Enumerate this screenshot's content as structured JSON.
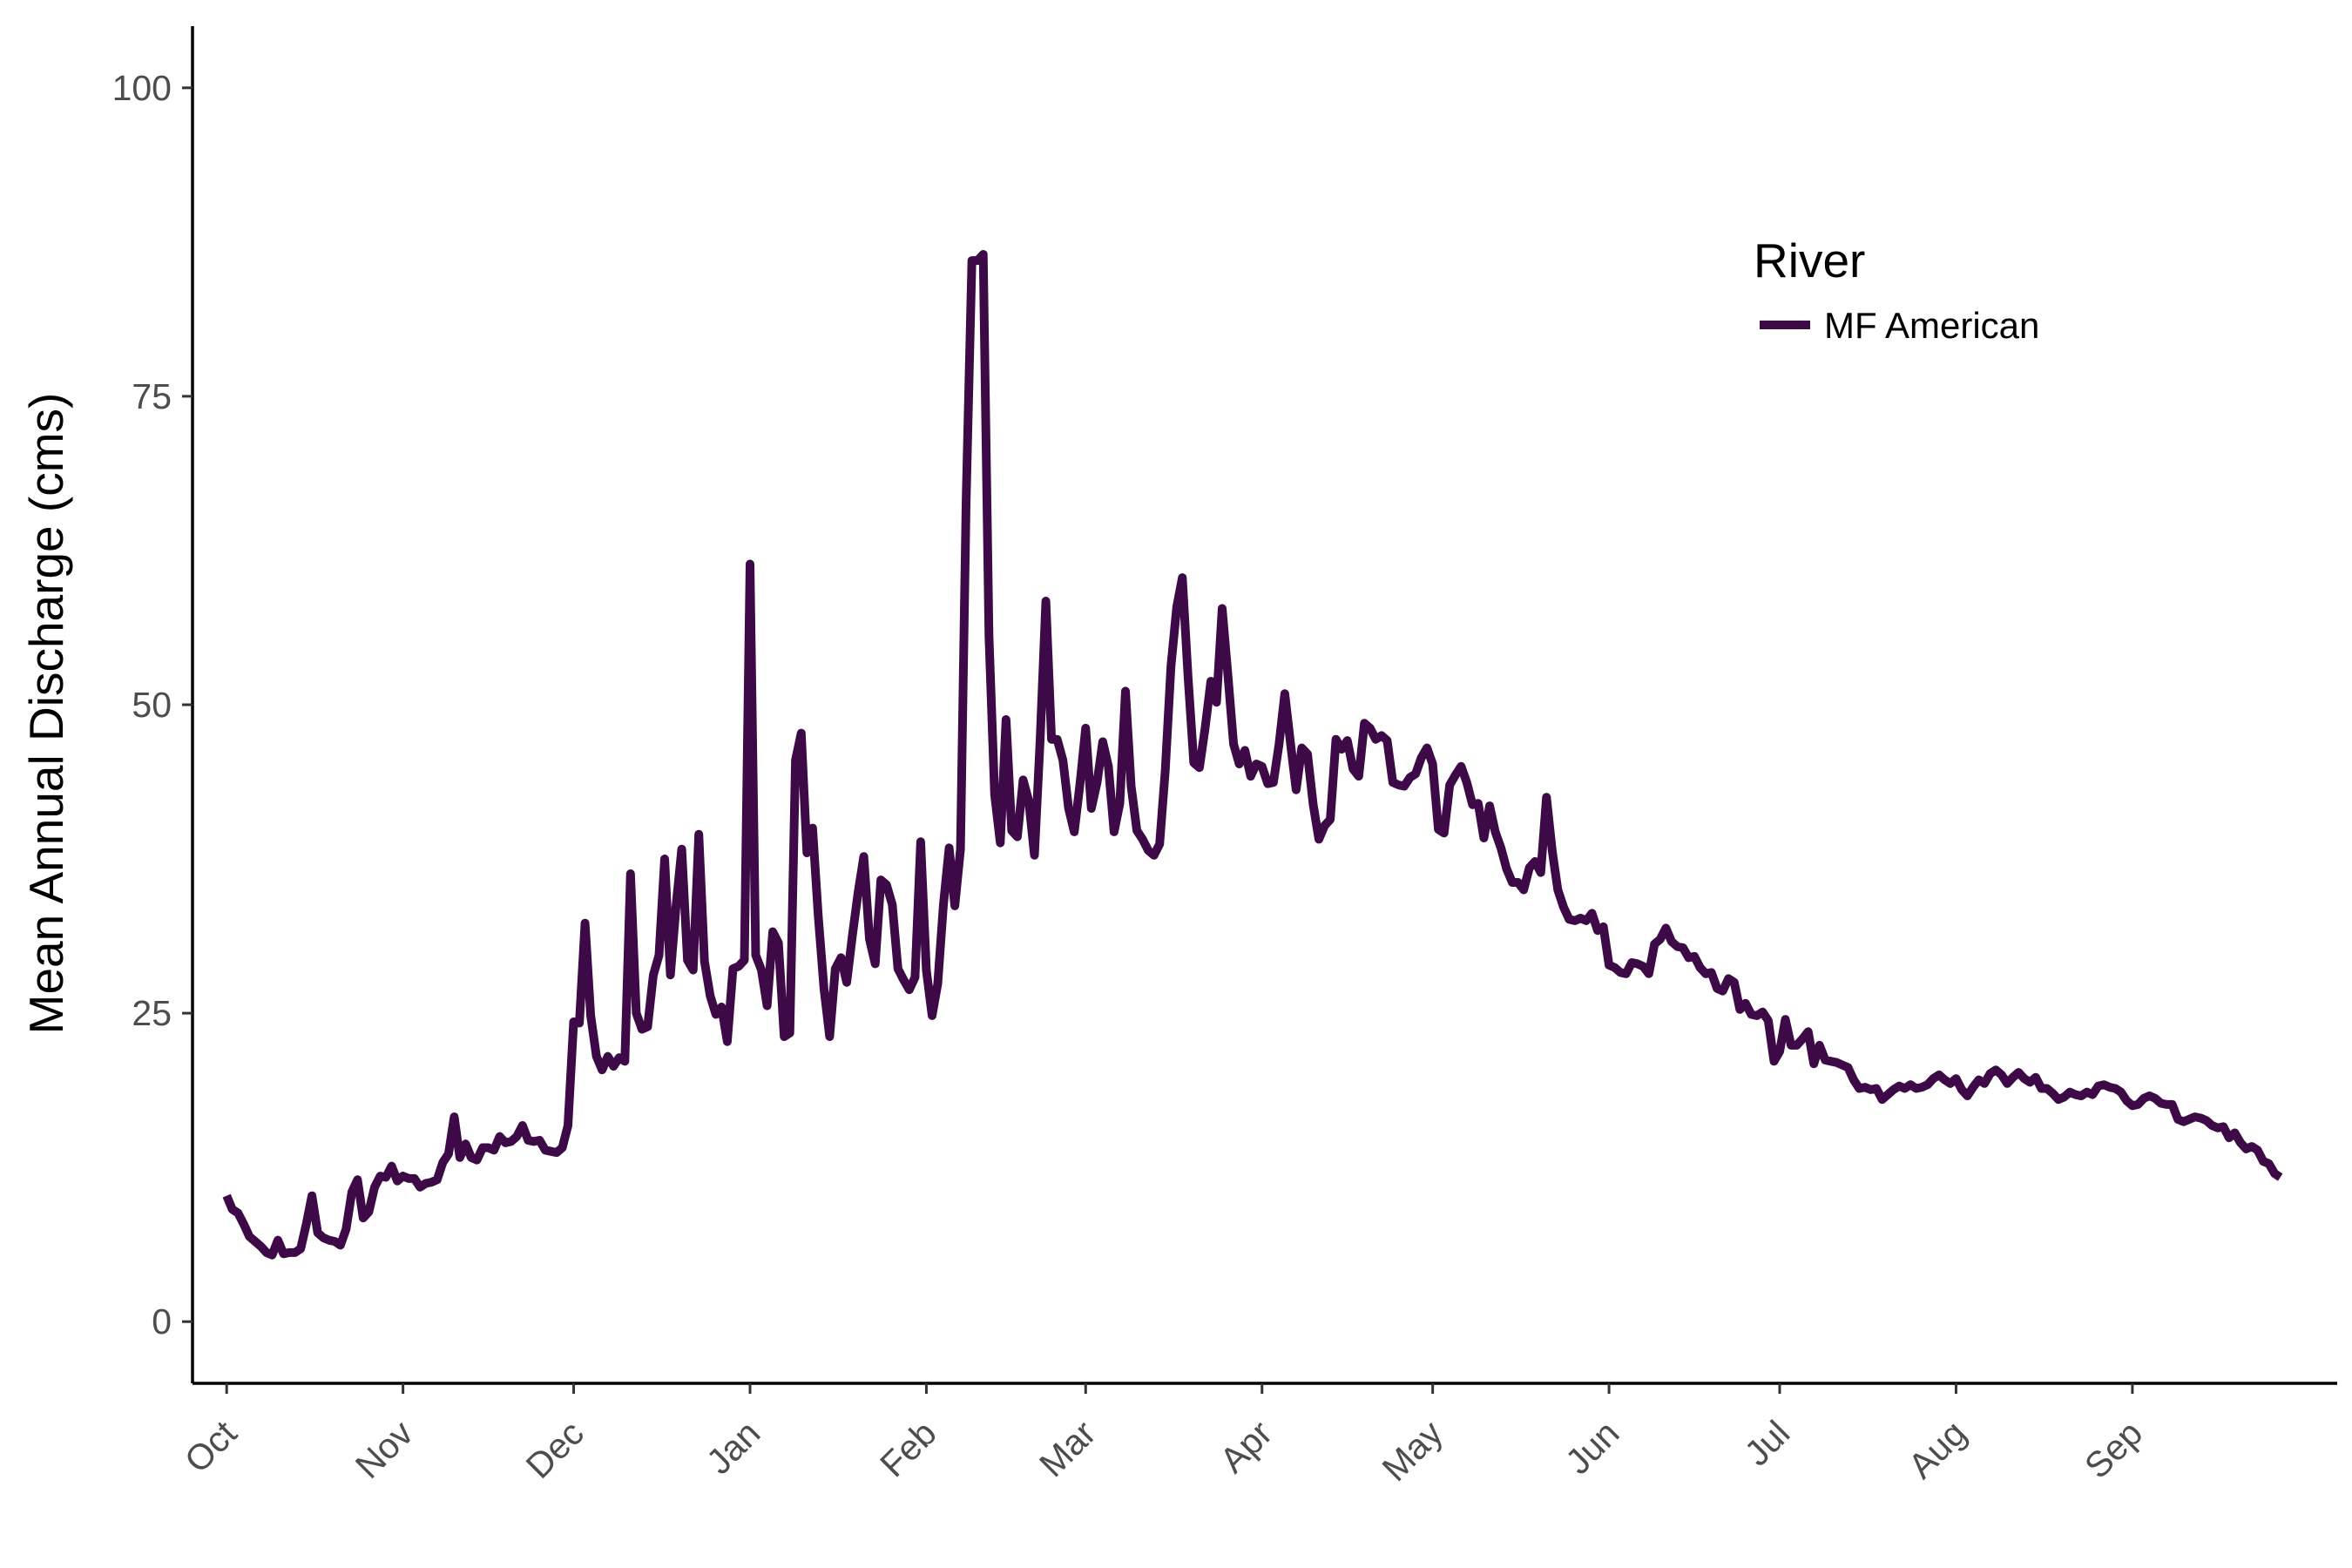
{
  "chart_data": {
    "type": "line",
    "xlabel": "",
    "ylabel": "Mean Annual Discharge (cms)",
    "ylim": [
      -5,
      105
    ],
    "x_range_days": [
      -6,
      371
    ],
    "yticks": [
      0,
      25,
      50,
      75,
      100
    ],
    "ytick_labels": [
      "0",
      "25",
      "50",
      "75",
      "100"
    ],
    "xtick_labels": [
      "Oct",
      "Nov",
      "Dec",
      "Jan",
      "Feb",
      "Mar",
      "Apr",
      "May",
      "Jun",
      "Jul",
      "Aug",
      "Sep"
    ],
    "month_lengths": [
      31,
      30,
      31,
      31,
      28,
      31,
      30,
      31,
      30,
      31,
      31,
      30
    ],
    "grid": false,
    "legend": {
      "title": "River",
      "position": "top-right"
    },
    "series": [
      {
        "name": "MF American",
        "color": "#3d0a47",
        "values": [
          10.2,
          9.1,
          8.8,
          7.9,
          6.9,
          6.5,
          6.1,
          5.6,
          5.4,
          6.6,
          5.5,
          5.6,
          5.6,
          5.9,
          7.9,
          10.2,
          7.2,
          6.8,
          6.6,
          6.5,
          6.2,
          7.5,
          10.5,
          11.5,
          8.4,
          8.9,
          10.9,
          11.8,
          11.7,
          12.6,
          11.4,
          11.8,
          11.6,
          11.6,
          10.9,
          11.2,
          11.3,
          11.5,
          12.9,
          13.6,
          16.6,
          13.3,
          14.4,
          13.3,
          13.1,
          14.1,
          14.1,
          13.9,
          15.0,
          14.5,
          14.6,
          15.0,
          15.9,
          14.7,
          14.6,
          14.7,
          13.9,
          13.8,
          13.7,
          14.1,
          15.9,
          24.3,
          24.2,
          32.3,
          24.8,
          21.5,
          20.4,
          21.5,
          20.7,
          21.4,
          21.1,
          36.3,
          25.0,
          23.7,
          23.9,
          28.1,
          29.7,
          37.5,
          28.1,
          33.7,
          38.3,
          29.3,
          28.5,
          39.5,
          29.2,
          26.4,
          24.9,
          25.5,
          22.7,
          28.6,
          28.8,
          29.3,
          61.4,
          29.7,
          28.5,
          25.6,
          31.6,
          30.7,
          23.1,
          23.4,
          45.5,
          47.7,
          38.0,
          40.0,
          32.8,
          27.0,
          23.1,
          28.6,
          29.5,
          27.5,
          31.3,
          34.8,
          37.7,
          31.0,
          29.0,
          35.8,
          35.4,
          33.8,
          28.6,
          27.7,
          26.9,
          27.9,
          38.9,
          28.5,
          24.8,
          27.4,
          33.8,
          38.4,
          33.7,
          38.3,
          66.6,
          86.0,
          86.0,
          86.5,
          55.6,
          42.7,
          38.8,
          48.8,
          39.8,
          39.3,
          43.9,
          42.2,
          37.8,
          47.1,
          58.4,
          47.2,
          47.2,
          45.5,
          41.6,
          39.7,
          43.6,
          48.1,
          41.6,
          43.7,
          47.0,
          45.0,
          39.7,
          42.0,
          51.1,
          43.4,
          39.8,
          39.1,
          38.2,
          37.8,
          38.7,
          44.7,
          53.1,
          57.9,
          60.3,
          52.3,
          45.3,
          44.9,
          48.1,
          51.9,
          50.2,
          57.8,
          52.4,
          46.8,
          45.2,
          46.3,
          44.2,
          45.2,
          45.0,
          43.6,
          43.7,
          46.8,
          50.9,
          46.9,
          43.1,
          46.5,
          46.0,
          41.9,
          39.1,
          40.2,
          40.7,
          47.2,
          46.4,
          47.1,
          44.8,
          44.2,
          48.5,
          48.1,
          47.2,
          47.5,
          47.1,
          43.7,
          43.5,
          43.4,
          44.1,
          44.4,
          45.7,
          46.5,
          45.2,
          39.9,
          39.6,
          43.5,
          44.3,
          45.0,
          43.7,
          41.9,
          42.0,
          39.2,
          41.8,
          39.7,
          38.4,
          36.7,
          35.6,
          35.6,
          35.0,
          36.8,
          37.3,
          36.4,
          42.5,
          38.2,
          35.0,
          33.6,
          32.6,
          32.5,
          32.7,
          32.5,
          33.1,
          31.7,
          32.0,
          28.9,
          28.7,
          28.3,
          28.2,
          29.1,
          29.0,
          28.8,
          28.2,
          30.6,
          31.0,
          31.9,
          30.8,
          30.4,
          30.3,
          29.5,
          29.6,
          28.7,
          28.2,
          28.3,
          27.0,
          26.8,
          27.8,
          27.5,
          25.3,
          25.8,
          24.9,
          24.8,
          25.1,
          24.4,
          21.1,
          21.9,
          24.5,
          22.4,
          22.4,
          22.9,
          23.5,
          20.9,
          22.4,
          21.2,
          21.1,
          21.0,
          20.8,
          20.6,
          19.6,
          18.9,
          19.0,
          18.8,
          18.9,
          18.0,
          18.4,
          18.8,
          19.1,
          18.9,
          19.2,
          18.9,
          19.0,
          19.2,
          19.7,
          20.0,
          19.6,
          19.3,
          19.7,
          18.8,
          18.3,
          19.0,
          19.6,
          19.3,
          20.1,
          20.4,
          20.0,
          19.3,
          19.8,
          20.2,
          19.7,
          19.4,
          19.8,
          18.9,
          18.9,
          18.5,
          18.0,
          18.2,
          18.6,
          18.4,
          18.3,
          18.6,
          18.4,
          19.1,
          19.2,
          19.0,
          18.9,
          18.6,
          17.9,
          17.5,
          17.6,
          18.1,
          18.3,
          18.1,
          17.7,
          17.6,
          17.6,
          16.4,
          16.2,
          16.4,
          16.6,
          16.5,
          16.3,
          15.9,
          15.7,
          15.8,
          14.9,
          15.3,
          14.5,
          14.0,
          14.2,
          13.9,
          13.0,
          12.8,
          12.0,
          11.7
        ]
      }
    ]
  }
}
